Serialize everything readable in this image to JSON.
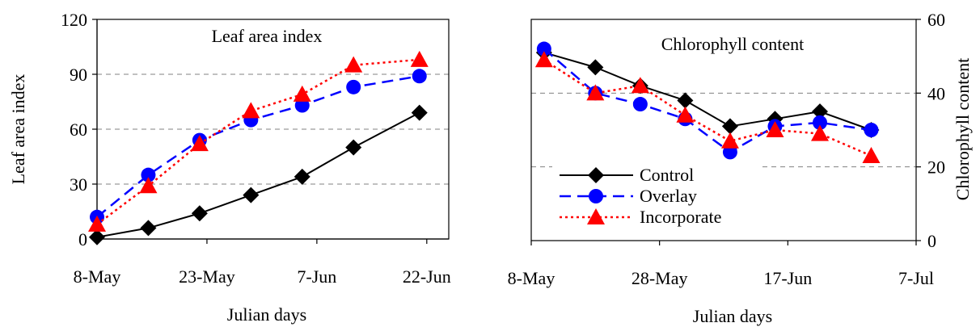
{
  "colors": {
    "control": "#000000",
    "overlay": "#0000ff",
    "incorporate": "#ff0000",
    "grid": "#808080",
    "marker_overlay": "#0000ff",
    "marker_incorporate": "#ff0000"
  },
  "chart_data": [
    {
      "type": "line",
      "title": "Leaf area index",
      "xlabel": "Julian days",
      "ylabel": "Leaf area index",
      "xlim": [
        "8-May",
        "25-Jun"
      ],
      "ylim": [
        0,
        120
      ],
      "xticks": [
        "8-May",
        "23-May",
        "7-Jun",
        "22-Jun"
      ],
      "yticks": [
        "0",
        "30",
        "60",
        "90",
        "120"
      ],
      "grid": "horizontal dashed at 30, 60, 90",
      "x": [
        "8-May",
        "15-May",
        "22-May",
        "29-May",
        "5-Jun",
        "12-Jun",
        "21-Jun"
      ],
      "series": [
        {
          "name": "Control",
          "values": [
            1,
            6,
            14,
            24,
            34,
            50,
            69
          ],
          "style": "solid",
          "marker": "diamond"
        },
        {
          "name": "Overlay",
          "values": [
            12,
            35,
            54,
            65,
            73,
            83,
            89
          ],
          "style": "dashed",
          "marker": "circle"
        },
        {
          "name": "Incorporate",
          "values": [
            8,
            29,
            52,
            70,
            79,
            95,
            98
          ],
          "style": "dotted",
          "marker": "triangle"
        }
      ]
    },
    {
      "type": "line",
      "title": "Chlorophyll content",
      "xlabel": "Julian days",
      "ylabel": "Chlorophyll content",
      "xlim": [
        "8-May",
        "7-Jul"
      ],
      "ylim": [
        0,
        60
      ],
      "xticks": [
        "8-May",
        "28-May",
        "17-Jun",
        "7-Jul"
      ],
      "yticks": [
        "0",
        "20",
        "40",
        "60"
      ],
      "y_axis_side": "right",
      "grid": "horizontal dashed at 20, 40",
      "legend_position": "lower-left",
      "x": [
        "10-May",
        "18-May",
        "25-May",
        "1-Jun",
        "8-Jun",
        "15-Jun",
        "22-Jun",
        "30-Jun"
      ],
      "series": [
        {
          "name": "Control",
          "values": [
            51,
            47,
            42,
            38,
            31,
            33,
            35,
            30
          ],
          "style": "solid",
          "marker": "diamond"
        },
        {
          "name": "Overlay",
          "values": [
            52,
            40,
            37,
            33,
            24,
            31,
            32,
            30
          ],
          "style": "dashed",
          "marker": "circle"
        },
        {
          "name": "Incorporate",
          "values": [
            49,
            40,
            42,
            34,
            27,
            30,
            29,
            23
          ],
          "style": "dotted",
          "marker": "triangle"
        }
      ]
    }
  ]
}
